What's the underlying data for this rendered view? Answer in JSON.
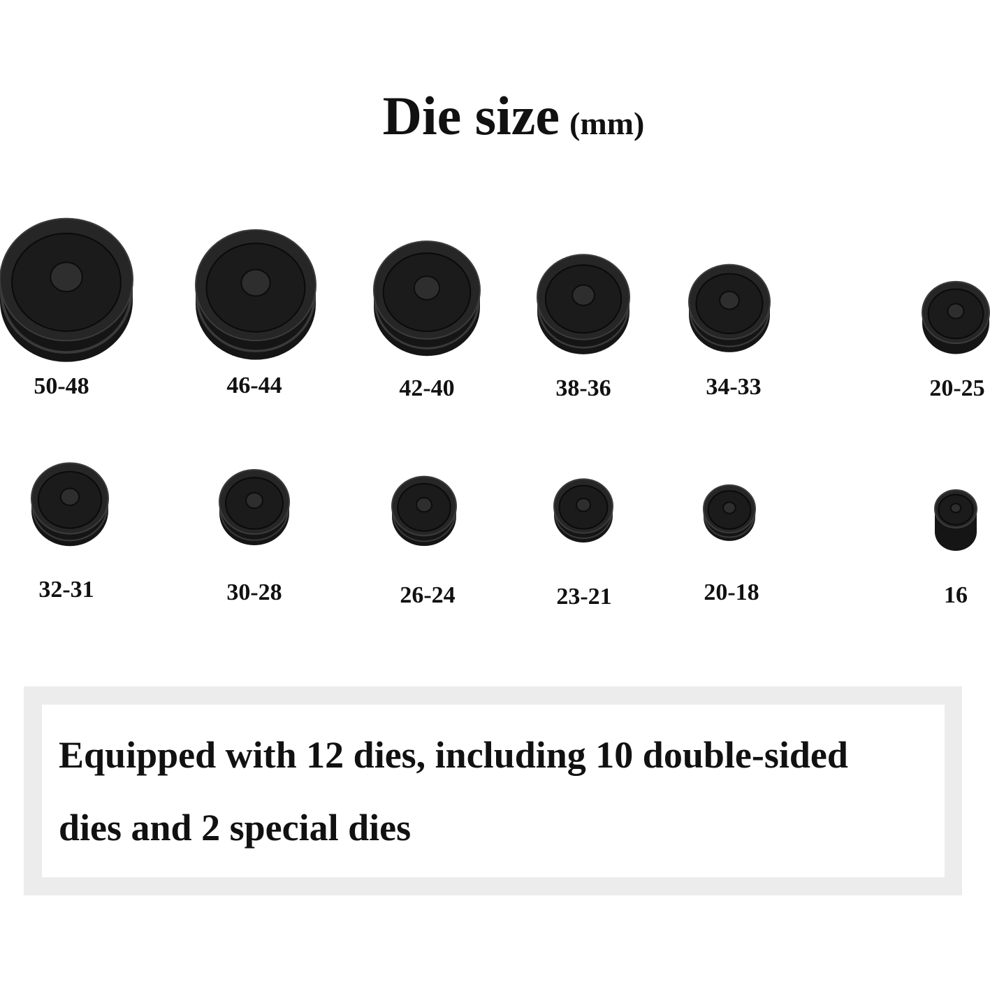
{
  "title": {
    "main": "Die size",
    "unit": "(mm)"
  },
  "dies": [
    {
      "label": "50-48"
    },
    {
      "label": "46-44"
    },
    {
      "label": "42-40"
    },
    {
      "label": "38-36"
    },
    {
      "label": "34-33"
    },
    {
      "label": "20-25"
    },
    {
      "label": "32-31"
    },
    {
      "label": "30-28"
    },
    {
      "label": "26-24"
    },
    {
      "label": "23-21"
    },
    {
      "label": "20-18"
    },
    {
      "label": "16"
    }
  ],
  "note": {
    "lines": [
      "Equipped with 12 dies, including 10 double-sided",
      "dies and 2 special dies"
    ]
  }
}
